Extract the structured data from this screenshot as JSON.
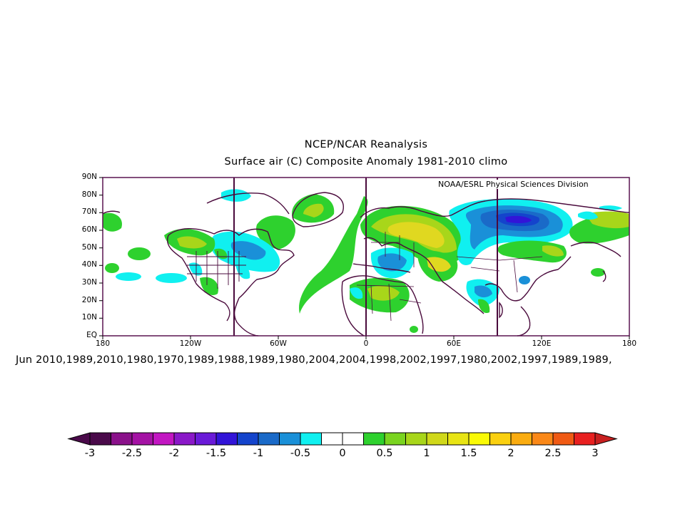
{
  "title_line1": "NCEP/NCAR Reanalysis",
  "title_line2": "Surface air (C) Composite Anomaly 1981-2010 climo",
  "credit": "NOAA/ESRL Physical Sciences Division",
  "years_line": "Jun 2010,1989,2010,1980,1970,1989,1988,1989,1980,2004,2004,1998,2002,1997,1980,2002,1997,1989,1989,",
  "lat_labels": [
    "90N",
    "80N",
    "70N",
    "60N",
    "50N",
    "40N",
    "30N",
    "20N",
    "10N",
    "EQ"
  ],
  "lon_labels": [
    "180",
    "120W",
    "60W",
    "0",
    "60E",
    "120E",
    "180"
  ],
  "colorbar": {
    "labels": [
      "-3",
      "-2.5",
      "-2",
      "-1.5",
      "-1",
      "-0.5",
      "0",
      "0.5",
      "1",
      "1.5",
      "2",
      "2.5",
      "3"
    ],
    "colors": [
      "#4a0a4a",
      "#8a118a",
      "#a412a4",
      "#c216c2",
      "#8a18c8",
      "#6a1ad8",
      "#3214d8",
      "#1444cc",
      "#1a6ac8",
      "#1a90d8",
      "#10f0f0",
      "#ffffff",
      "#ffffff",
      "#2ed12e",
      "#7ad420",
      "#a8d61a",
      "#d0d81a",
      "#e8e414",
      "#fafa06",
      "#fad010",
      "#faac10",
      "#fa8818",
      "#f05a14",
      "#e82020"
    ],
    "under_color": "#4a0a4a",
    "over_color": "#c82020"
  },
  "palette": {
    "frame": "#5a1450",
    "coast": "#4a0a3c",
    "green": "#2ed12e",
    "yellowgreen": "#a8d61a",
    "yellow": "#e0d820",
    "cyan": "#10f0f0",
    "lightblue": "#1a90d8",
    "blue": "#1a6ac8",
    "darkblue": "#1444cc",
    "indigo": "#3214d8"
  }
}
